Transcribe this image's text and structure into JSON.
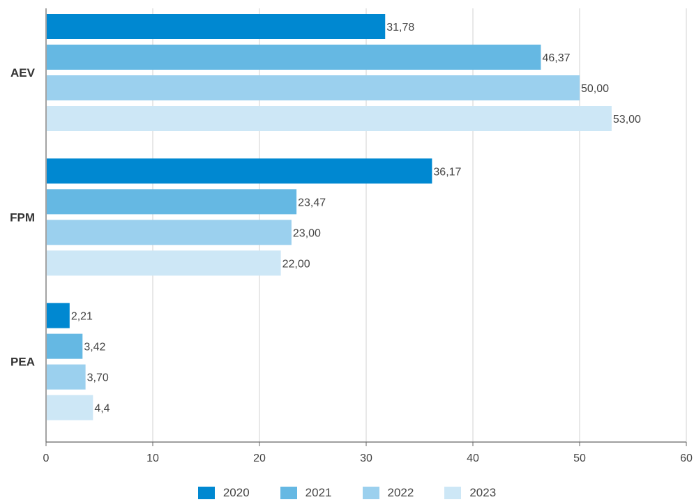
{
  "chart_data": {
    "type": "bar",
    "orientation": "horizontal",
    "categories": [
      "AEV",
      "FPM",
      "PEA"
    ],
    "series": [
      {
        "name": "2020",
        "values": [
          31.78,
          36.17,
          2.21
        ],
        "labels": [
          "31,78",
          "36,17",
          "2,21"
        ],
        "color": "#0088d1"
      },
      {
        "name": "2021",
        "values": [
          46.37,
          23.47,
          3.42
        ],
        "labels": [
          "46,37",
          "23,47",
          "3,42"
        ],
        "color": "#65b8e3"
      },
      {
        "name": "2022",
        "values": [
          50.0,
          23.0,
          3.7
        ],
        "labels": [
          "50,00",
          "23,00",
          "3,70"
        ],
        "color": "#9bd0ee"
      },
      {
        "name": "2023",
        "values": [
          53.0,
          22.0,
          4.4
        ],
        "labels": [
          "53,00",
          "22,00",
          "4,4"
        ],
        "color": "#cde7f6"
      }
    ],
    "xlim": [
      0,
      60
    ],
    "xticks": [
      "0",
      "10",
      "20",
      "30",
      "40",
      "50",
      "60"
    ],
    "grid": "vertical",
    "legend_position": "bottom"
  }
}
